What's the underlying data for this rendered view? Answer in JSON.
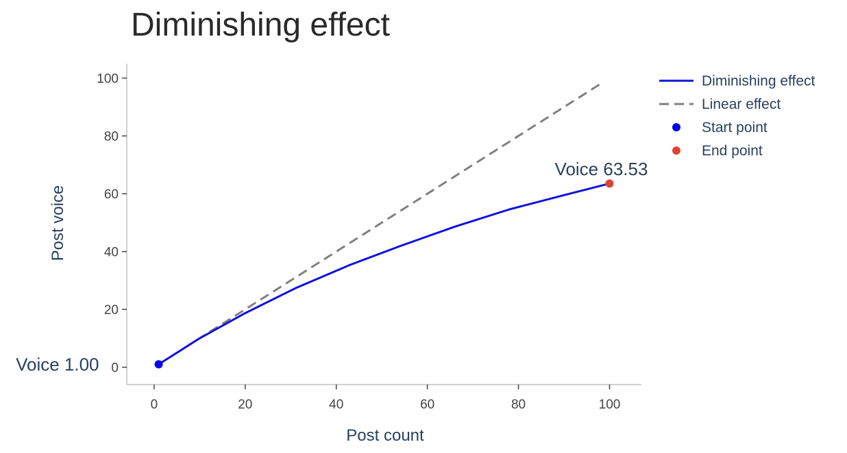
{
  "chart_data": {
    "type": "line",
    "title": "Diminishing effect",
    "xlabel": "Post count",
    "ylabel": "Post voice",
    "xlim": [
      -6,
      107
    ],
    "ylim": [
      -6,
      105
    ],
    "x_ticks": [
      0,
      20,
      40,
      60,
      80,
      100
    ],
    "y_ticks": [
      0,
      20,
      40,
      60,
      80,
      100
    ],
    "grid": false,
    "legend_position": "top-right",
    "series": [
      {
        "name": "Diminishing effect",
        "style": "solid",
        "color": "#1010dd",
        "x": [
          1,
          10,
          20,
          31,
          43,
          54,
          66,
          78,
          90,
          100
        ],
        "y": [
          1.0,
          10.0,
          18.7,
          27.3,
          35.4,
          41.9,
          48.6,
          54.6,
          59.5,
          63.53
        ]
      },
      {
        "name": "Linear effect",
        "style": "dashed",
        "color": "#808080",
        "x": [
          1,
          98
        ],
        "y": [
          1,
          98
        ]
      },
      {
        "name": "Start point",
        "style": "marker",
        "color": "#0000ee",
        "x": [
          1
        ],
        "y": [
          1.0
        ]
      },
      {
        "name": "End point",
        "style": "marker",
        "color": "#dd4433",
        "x": [
          100
        ],
        "y": [
          63.53
        ]
      }
    ],
    "annotations": [
      {
        "text": "Voice 1.00",
        "x": 1,
        "y": 1.0
      },
      {
        "text": "Voice 63.53",
        "x": 100,
        "y": 63.53
      }
    ]
  }
}
